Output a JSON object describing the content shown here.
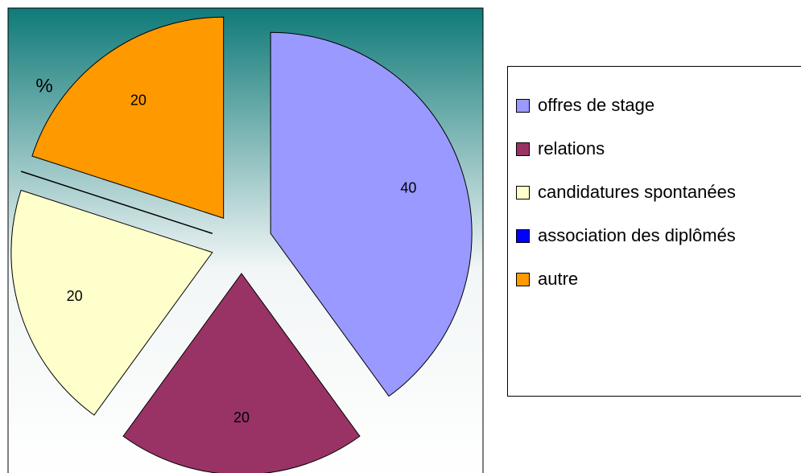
{
  "chart_data": {
    "type": "pie",
    "unit": "%",
    "categories": [
      "offres de stage",
      "relations",
      "candidatures spontanées",
      "association des diplômés",
      "autre"
    ],
    "values": [
      40,
      20,
      20,
      0,
      20
    ],
    "colors": [
      "#9999ff",
      "#993366",
      "#ffffcc",
      "#0000ff",
      "#ff9900"
    ],
    "legend": "right"
  }
}
